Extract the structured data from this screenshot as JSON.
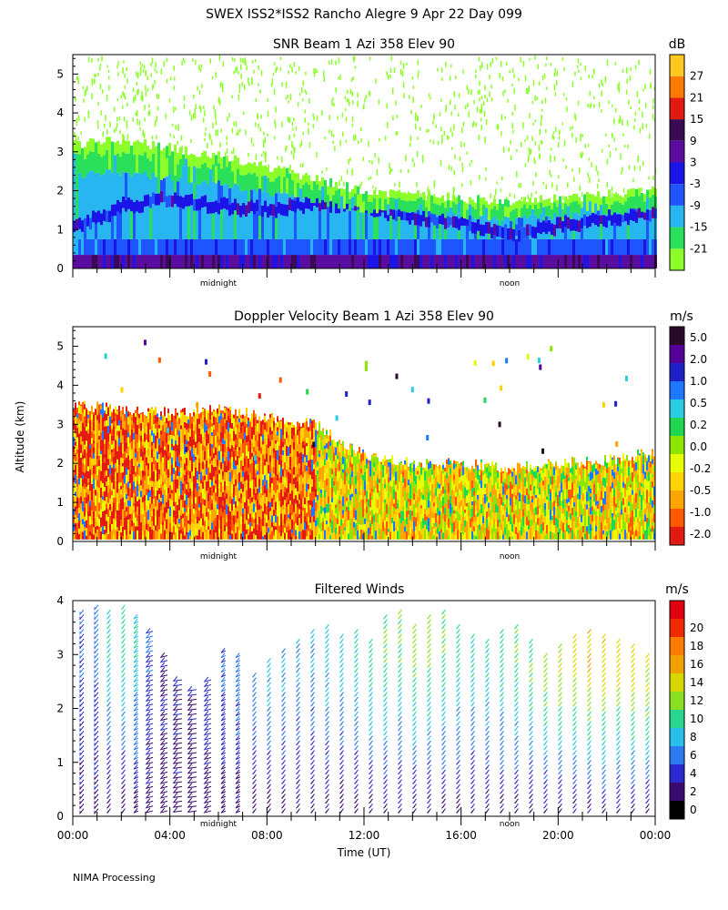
{
  "header": {
    "title": "SWEX ISS2*ISS2 Rancho Alegre   9 Apr 22 Day 099"
  },
  "footer": {
    "text": "NIMA Processing"
  },
  "colors": {
    "snr": [
      "#8cff2a",
      "#2adf5a",
      "#28b6f0",
      "#1e55ff",
      "#1a14e6",
      "#5a0ca0",
      "#3a0a55",
      "#e21a12",
      "#ff7a00",
      "#ffc81e"
    ],
    "doppler": [
      "#e21a12",
      "#ff5a00",
      "#ffa500",
      "#ffd200",
      "#e8ff00",
      "#8ce600",
      "#20d850",
      "#28cde0",
      "#1e78ff",
      "#2020c8",
      "#55009a",
      "#2a0a2a"
    ],
    "winds": [
      "#000000",
      "#3a0a6e",
      "#2a2ad0",
      "#2a7af0",
      "#28c0e8",
      "#28d890",
      "#8ae020",
      "#d8d800",
      "#f0a000",
      "#ff7a00",
      "#f02a00",
      "#e00010"
    ]
  },
  "chart_data": [
    {
      "type": "heatmap",
      "title": "SNR Beam 1 Azi 358 Elev 90",
      "ylabel": "",
      "ylim": [
        0,
        5.5
      ],
      "yticks": [
        "0",
        "1",
        "2",
        "3",
        "4",
        "5"
      ],
      "x_markers": [
        "midnight",
        "noon"
      ],
      "colorbar_unit": "dB",
      "colorbar_labels": [
        "-21",
        "-15",
        "-9",
        "-3",
        "3",
        "9",
        "15",
        "21",
        "27"
      ],
      "profile": {
        "time_hr": [
          0,
          2,
          4,
          6,
          8,
          10,
          12,
          14,
          16,
          18,
          20,
          22,
          24
        ],
        "top_km": [
          3.2,
          3.3,
          3.1,
          2.9,
          2.6,
          2.3,
          2.0,
          1.9,
          1.8,
          1.7,
          1.8,
          1.9,
          2.0
        ],
        "center_km": [
          1.0,
          1.6,
          1.8,
          1.6,
          1.5,
          1.7,
          1.6,
          1.3,
          1.2,
          0.9,
          1.1,
          1.3,
          1.4
        ]
      }
    },
    {
      "type": "heatmap",
      "title": "Doppler Velocity Beam 1 Azi 358 Elev 90",
      "ylabel": "Altitude (km)",
      "ylim": [
        0,
        5.5
      ],
      "yticks": [
        "0",
        "1",
        "2",
        "3",
        "4",
        "5"
      ],
      "x_markers": [
        "midnight",
        "noon"
      ],
      "colorbar_unit": "m/s",
      "colorbar_labels": [
        "-2.0",
        "-1.0",
        "-0.5",
        "-0.2",
        "0.0",
        "0.2",
        "0.5",
        "1.0",
        "2.0",
        "5.0"
      ],
      "profile": {
        "time_hr": [
          0,
          2,
          4,
          6,
          8,
          10,
          12,
          14,
          16,
          18,
          20,
          22,
          24
        ],
        "top_km": [
          3.5,
          3.4,
          3.3,
          3.4,
          3.2,
          3.0,
          2.2,
          2.0,
          2.0,
          1.9,
          2.0,
          2.1,
          2.3
        ]
      }
    },
    {
      "type": "wind-barbs",
      "title": "Filtered Winds",
      "xlabel": "Time (UT)",
      "ylim": [
        0,
        4
      ],
      "yticks": [
        "0",
        "1",
        "2",
        "3",
        "4"
      ],
      "xticks": [
        "00:00",
        "04:00",
        "08:00",
        "12:00",
        "16:00",
        "20:00",
        "00:00"
      ],
      "x_markers": [
        "midnight",
        "noon"
      ],
      "colorbar_unit": "m/s",
      "colorbar_labels": [
        "0",
        "2",
        "4",
        "6",
        "8",
        "10",
        "12",
        "14",
        "16",
        "18",
        "20"
      ],
      "profiles": {
        "time_hr": [
          0.3,
          0.9,
          1.5,
          2.1,
          2.7,
          3.3,
          3.9,
          4.5,
          5.1,
          5.7,
          6.3,
          6.9,
          7.5,
          8.1,
          8.7,
          9.3,
          9.9,
          10.5,
          11.1,
          11.7,
          12.3,
          12.9,
          13.5,
          14.1,
          14.7,
          15.3,
          15.9,
          16.5,
          17.1,
          17.7,
          18.3,
          18.9,
          19.5,
          20.1,
          20.7,
          21.3,
          21.9,
          22.5,
          23.1,
          23.7
        ],
        "top_km": [
          3.8,
          3.9,
          3.8,
          3.9,
          3.7,
          3.5,
          3.0,
          2.6,
          2.4,
          2.6,
          3.1,
          3.0,
          2.7,
          2.9,
          3.1,
          3.3,
          3.5,
          3.6,
          3.4,
          3.5,
          3.3,
          3.7,
          3.8,
          3.6,
          3.7,
          3.8,
          3.6,
          3.4,
          3.3,
          3.5,
          3.6,
          3.3,
          3.0,
          3.2,
          3.4,
          3.5,
          3.4,
          3.3,
          3.2,
          3.0
        ],
        "speed_top_ms": [
          5,
          6,
          9,
          10,
          9,
          5,
          3,
          3,
          3,
          4,
          5,
          6,
          6,
          7,
          7,
          7,
          7,
          8,
          8,
          9,
          10,
          11,
          11,
          12,
          12,
          11,
          10,
          9,
          9,
          10,
          11,
          11,
          12,
          13,
          14,
          15,
          15,
          14,
          14,
          13
        ],
        "direction_deg": [
          270,
          270,
          280,
          280,
          290,
          300,
          300,
          310,
          310,
          300,
          290,
          290,
          280,
          280,
          280,
          280,
          280,
          280,
          280,
          280,
          280,
          280,
          280,
          280,
          280,
          280,
          280,
          280,
          280,
          280,
          280,
          280,
          280,
          280,
          280,
          280,
          280,
          280,
          280,
          280
        ]
      }
    }
  ]
}
